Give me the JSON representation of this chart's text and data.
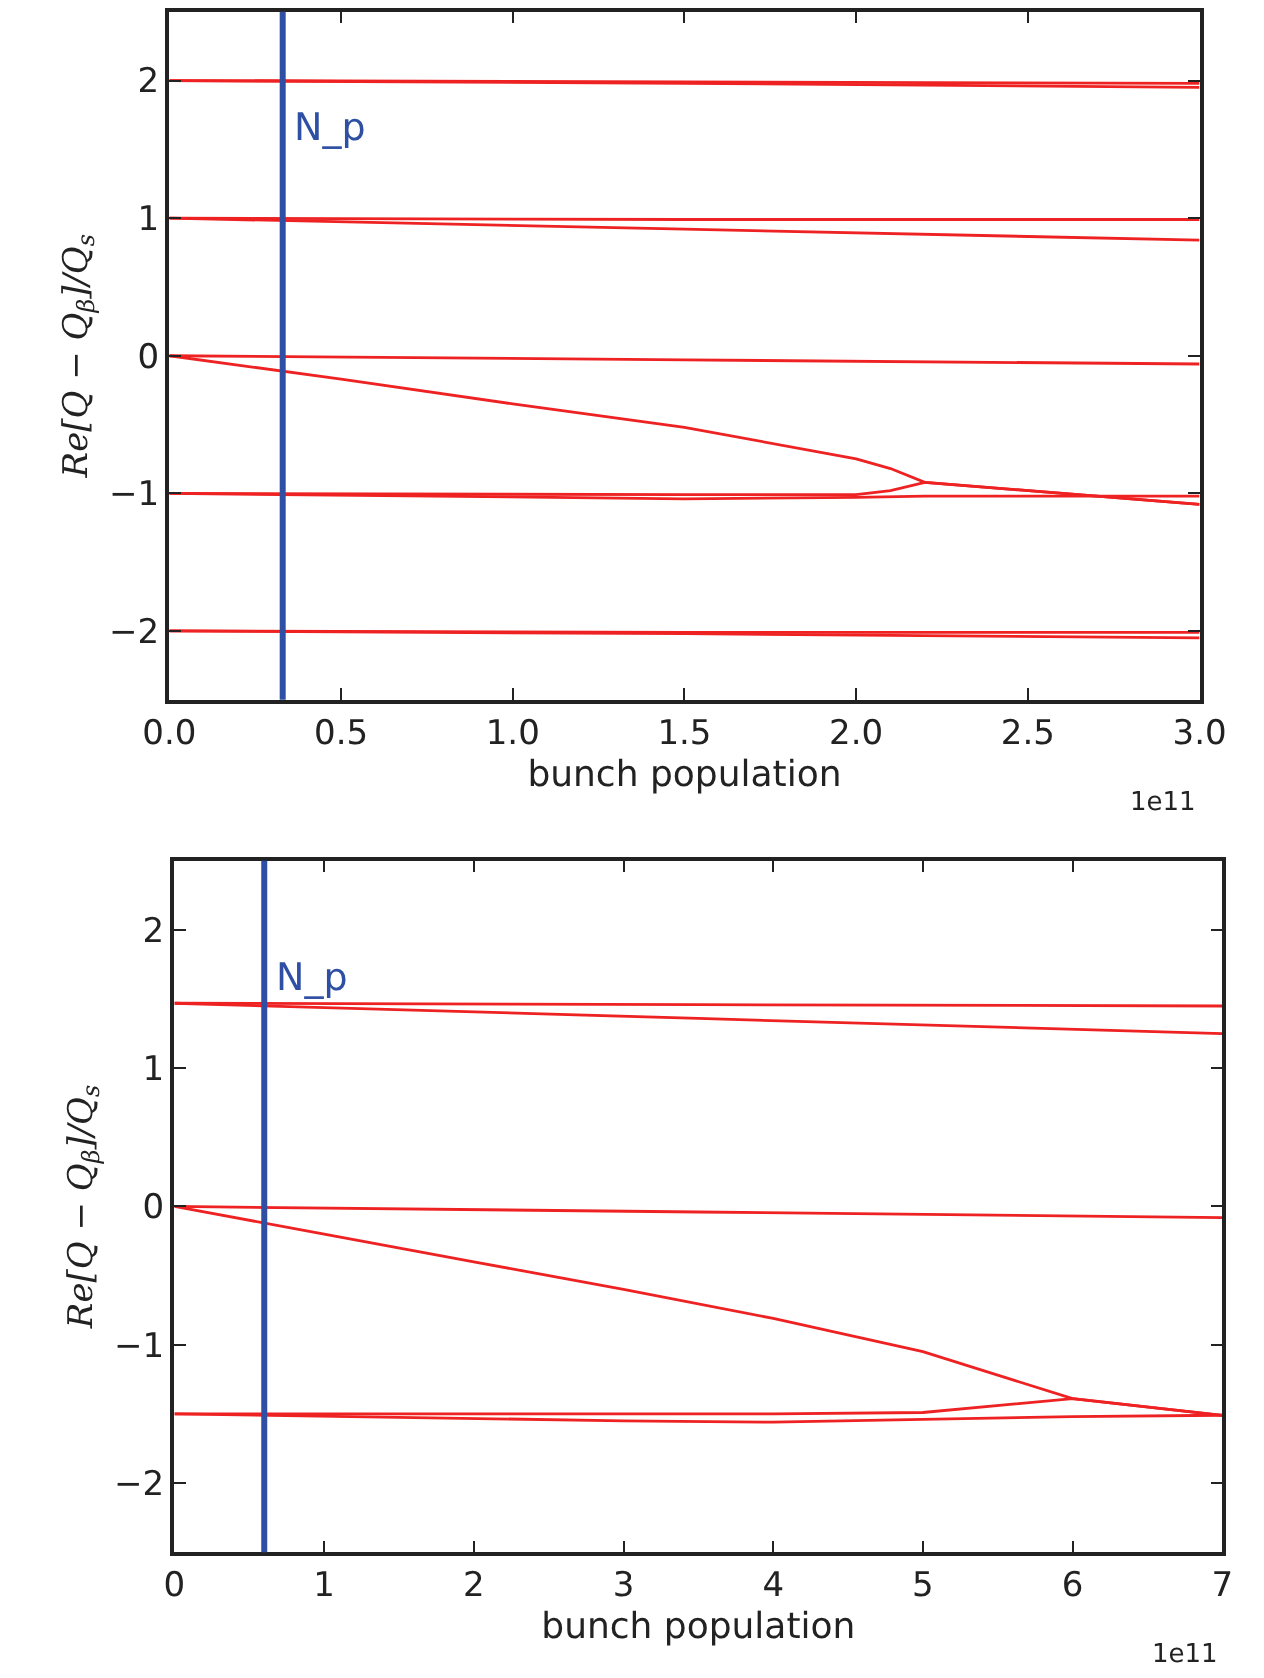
{
  "chart_data": [
    {
      "type": "line",
      "xlabel": "bunch population",
      "ylabel": "Re[Q − Q$_{β}$]/Q$_{s}$",
      "xlim": [
        0,
        3.0
      ],
      "ylim": [
        -2.5,
        2.5
      ],
      "xticks": [
        {
          "value": 0,
          "label": "0.0"
        },
        0.5,
        {
          "value": 1,
          "label": "1.0"
        },
        1.5,
        {
          "value": 2,
          "label": "2.0"
        },
        2.5,
        {
          "value": 3,
          "label": "3.0"
        }
      ],
      "yticks": [
        -2,
        -1,
        0,
        1,
        2
      ],
      "marker": "none",
      "line_style": "solid",
      "annotations": [
        "1e11"
      ],
      "ref_lines": [
        {
          "axis": "x",
          "value": 0.33,
          "label": "N_p",
          "color": "#2e4fa3"
        }
      ],
      "series": [
        {
          "color": "#ee2222",
          "x": [
            0,
            1.5,
            3
          ],
          "values": [
            2,
            1.99,
            1.98
          ]
        },
        {
          "color": "#ee2222",
          "x": [
            0,
            1.5,
            3
          ],
          "values": [
            2,
            1.98,
            1.95
          ]
        },
        {
          "color": "#ee2222",
          "x": [
            0,
            1.5,
            3
          ],
          "values": [
            1,
            0.99,
            0.99
          ]
        },
        {
          "color": "#ee2222",
          "x": [
            0,
            1.5,
            3
          ],
          "values": [
            1,
            0.92,
            0.84
          ]
        },
        {
          "color": "#ee2222",
          "x": [
            0,
            1.5,
            3
          ],
          "values": [
            0,
            -0.03,
            -0.06
          ]
        },
        {
          "color": "#ee2222",
          "x": [
            0,
            0.5,
            1.0,
            1.5,
            2.0,
            2.1,
            2.2,
            3.0
          ],
          "values": [
            0,
            -0.17,
            -0.35,
            -0.52,
            -0.75,
            -0.82,
            -0.92,
            -1.08
          ]
        },
        {
          "color": "#ee2222",
          "x": [
            0,
            1.5,
            2.0,
            2.1,
            2.2,
            3.0
          ],
          "values": [
            -1,
            -1.01,
            -1.01,
            -0.98,
            -0.92,
            -1.08
          ]
        },
        {
          "color": "#ee2222",
          "x": [
            0,
            1.5,
            2.0,
            2.2,
            3.0
          ],
          "values": [
            -1,
            -1.04,
            -1.03,
            -1.02,
            -1.02
          ]
        },
        {
          "color": "#ee2222",
          "x": [
            0,
            1.5,
            3
          ],
          "values": [
            -2,
            -2.01,
            -2.01
          ]
        },
        {
          "color": "#ee2222",
          "x": [
            0,
            1.5,
            3
          ],
          "values": [
            -2,
            -2.02,
            -2.05
          ]
        }
      ]
    },
    {
      "type": "line",
      "xlabel": "bunch population",
      "ylabel": "Re[Q − Q$_{β}$]/Q$_{s}$",
      "xlim": [
        0,
        7
      ],
      "ylim": [
        -2.5,
        2.5
      ],
      "xticks": [
        0,
        1,
        2,
        3,
        4,
        5,
        6,
        7
      ],
      "yticks": [
        -2,
        -1,
        0,
        1,
        2
      ],
      "marker": "none",
      "line_style": "solid",
      "annotations": [
        "1e11"
      ],
      "ref_lines": [
        {
          "axis": "x",
          "value": 0.6,
          "label": "N_p",
          "color": "#2e4fa3"
        }
      ],
      "series": [
        {
          "color": "#ee2222",
          "x": [
            0,
            3.5,
            7
          ],
          "values": [
            1.47,
            1.46,
            1.45
          ]
        },
        {
          "color": "#ee2222",
          "x": [
            0,
            3.5,
            7
          ],
          "values": [
            1.47,
            1.36,
            1.25
          ]
        },
        {
          "color": "#ee2222",
          "x": [
            0,
            3.5,
            7
          ],
          "values": [
            0,
            -0.04,
            -0.08
          ]
        },
        {
          "color": "#ee2222",
          "x": [
            0,
            1,
            2,
            3,
            4,
            5,
            6,
            7
          ],
          "values": [
            0,
            -0.2,
            -0.4,
            -0.6,
            -0.81,
            -1.05,
            -1.39,
            -1.51
          ]
        },
        {
          "color": "#ee2222",
          "x": [
            0,
            3,
            4,
            5,
            6,
            7
          ],
          "values": [
            -1.5,
            -1.5,
            -1.5,
            -1.49,
            -1.39,
            -1.51
          ]
        },
        {
          "color": "#ee2222",
          "x": [
            0,
            3,
            4,
            5,
            6,
            7
          ],
          "values": [
            -1.5,
            -1.55,
            -1.56,
            -1.54,
            -1.52,
            -1.51
          ]
        }
      ]
    }
  ]
}
